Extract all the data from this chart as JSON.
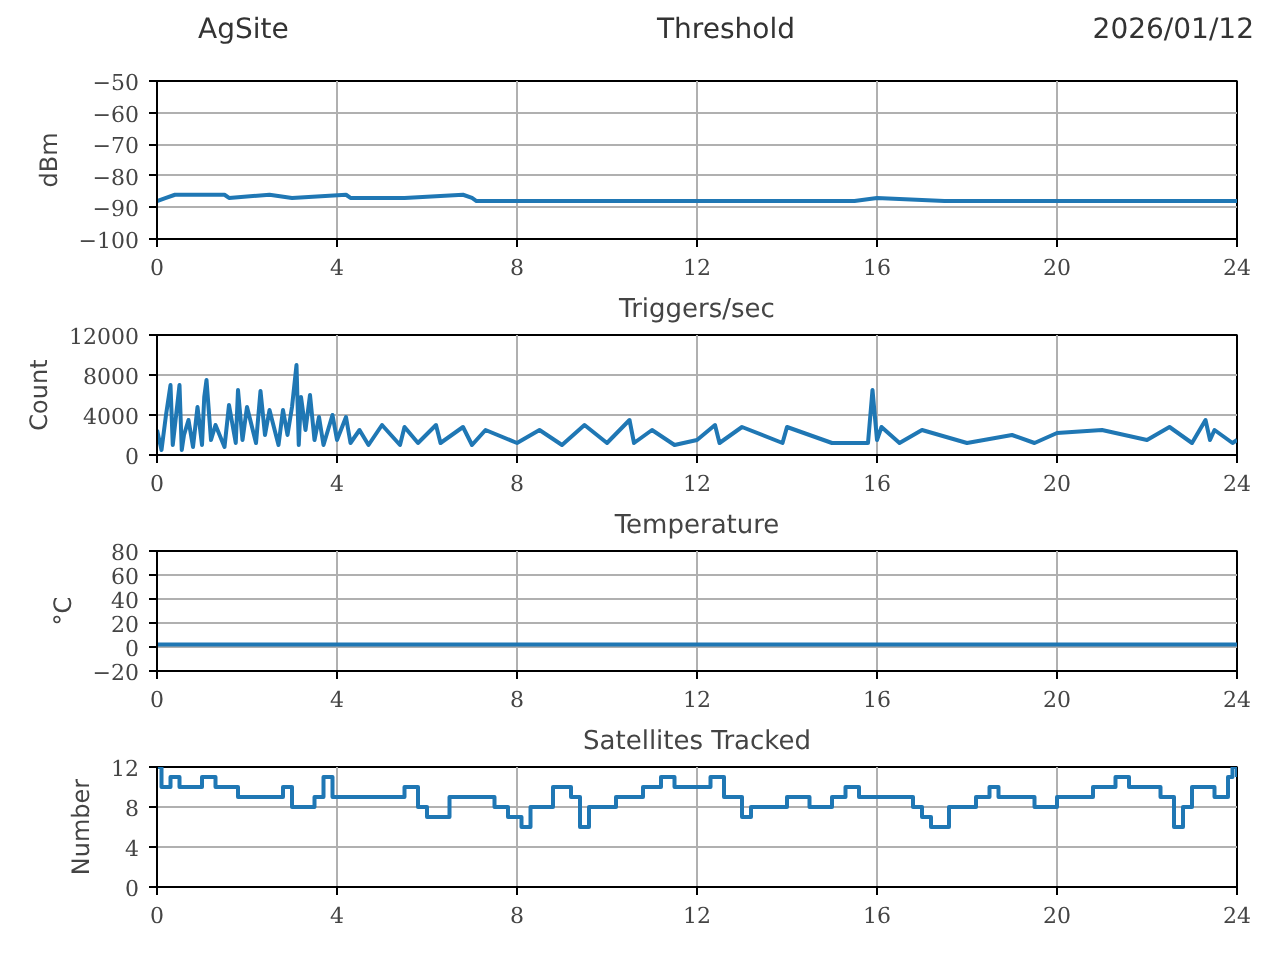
{
  "chart_data": [
    {
      "type": "line",
      "title": "Threshold",
      "ylabel": "dBm",
      "annotations": [
        "AgSite",
        "2026/01/12"
      ],
      "x": [
        0,
        0.2,
        0.4,
        1.5,
        1.6,
        2.5,
        3.0,
        4.2,
        4.3,
        5.5,
        6.8,
        7.0,
        7.1,
        12,
        15.5,
        16,
        17.5,
        20,
        24
      ],
      "series": [
        {
          "color": "#1f77b4",
          "values": [
            -88,
            -87,
            -86,
            -86,
            -87,
            -86,
            -87,
            -86,
            -87,
            -87,
            -86,
            -87,
            -88,
            -88,
            -88,
            -87,
            -88,
            -88,
            -88
          ]
        }
      ],
      "xlim": [
        0,
        24
      ],
      "xticks": [
        0,
        4,
        8,
        12,
        16,
        20,
        24
      ],
      "ylim": [
        -100,
        -50
      ],
      "yticks": [
        {
          "value": -100,
          "label": "−100"
        },
        {
          "value": -90,
          "label": "−90"
        },
        {
          "value": -80,
          "label": "−80"
        },
        {
          "value": -70,
          "label": "−70"
        },
        {
          "value": -60,
          "label": "−60"
        },
        {
          "value": -50,
          "label": "−50"
        }
      ],
      "grid": true
    },
    {
      "type": "line",
      "title": "Triggers/sec",
      "ylabel": "Count",
      "x": [
        0,
        0.1,
        0.2,
        0.3,
        0.35,
        0.4,
        0.5,
        0.55,
        0.6,
        0.7,
        0.8,
        0.9,
        1.0,
        1.05,
        1.1,
        1.2,
        1.3,
        1.5,
        1.6,
        1.75,
        1.8,
        1.9,
        2.0,
        2.2,
        2.3,
        2.4,
        2.5,
        2.7,
        2.8,
        2.9,
        3.0,
        3.1,
        3.15,
        3.2,
        3.3,
        3.4,
        3.5,
        3.6,
        3.7,
        3.9,
        4.0,
        4.2,
        4.3,
        4.5,
        4.7,
        5.0,
        5.4,
        5.5,
        5.8,
        6.2,
        6.3,
        6.8,
        7.0,
        7.3,
        8.0,
        8.5,
        9.0,
        9.5,
        10.0,
        10.5,
        10.6,
        11.0,
        11.5,
        12.0,
        12.4,
        12.5,
        13.0,
        13.9,
        14.0,
        15.0,
        15.8,
        15.9,
        16.0,
        16.1,
        16.5,
        17.0,
        18.0,
        19.0,
        19.5,
        20.0,
        21.0,
        22.0,
        22.5,
        23.0,
        23.3,
        23.4,
        23.5,
        23.9,
        24.0
      ],
      "series": [
        {
          "color": "#1f77b4",
          "values": [
            2500,
            500,
            4000,
            7000,
            1000,
            3000,
            7000,
            500,
            2000,
            3500,
            800,
            4800,
            1000,
            5800,
            7500,
            1500,
            3000,
            800,
            5000,
            1200,
            6500,
            1500,
            4800,
            1200,
            6400,
            2000,
            4500,
            1000,
            4500,
            2000,
            4800,
            9000,
            1000,
            5800,
            2500,
            6000,
            1500,
            3800,
            1000,
            4000,
            1500,
            3800,
            1200,
            2500,
            1000,
            3000,
            1000,
            2800,
            1200,
            3000,
            1200,
            2800,
            1000,
            2500,
            1200,
            2500,
            1000,
            3000,
            1200,
            3500,
            1200,
            2500,
            1000,
            1500,
            3000,
            1200,
            2800,
            1200,
            2800,
            1200,
            1200,
            6500,
            1500,
            2800,
            1200,
            2500,
            1200,
            2000,
            1200,
            2200,
            2500,
            1500,
            2800,
            1200,
            3500,
            1500,
            2500,
            1200,
            1500
          ]
        }
      ],
      "xlim": [
        0,
        24
      ],
      "xticks": [
        0,
        4,
        8,
        12,
        16,
        20,
        24
      ],
      "ylim": [
        0,
        12000
      ],
      "yticks": [
        0,
        4000,
        8000,
        12000
      ],
      "grid": true
    },
    {
      "type": "line",
      "title": "Temperature",
      "ylabel": "°C",
      "x": [
        0,
        24
      ],
      "series": [
        {
          "color": "#1f77b4",
          "values": [
            2,
            2
          ]
        }
      ],
      "xlim": [
        0,
        24
      ],
      "xticks": [
        0,
        4,
        8,
        12,
        16,
        20,
        24
      ],
      "ylim": [
        -20,
        80
      ],
      "yticks": [
        {
          "value": -20,
          "label": "−20"
        },
        0,
        20,
        40,
        60,
        80
      ],
      "grid": true
    },
    {
      "type": "step",
      "title": "Satellites Tracked",
      "ylabel": "Number",
      "x": [
        0,
        0.1,
        0.3,
        0.5,
        1.0,
        1.3,
        1.8,
        2.5,
        2.8,
        3.0,
        3.5,
        3.7,
        3.9,
        4.5,
        5.5,
        5.8,
        6.0,
        6.5,
        7.5,
        7.8,
        8.1,
        8.3,
        8.8,
        9.2,
        9.4,
        9.6,
        10.2,
        10.8,
        11.2,
        11.5,
        12.3,
        12.6,
        13.0,
        13.2,
        14.0,
        14.5,
        15.0,
        15.3,
        15.6,
        16.0,
        16.8,
        17.0,
        17.2,
        17.6,
        18.2,
        18.5,
        18.7,
        19.5,
        20.0,
        20.8,
        21.3,
        21.6,
        22.3,
        22.6,
        22.8,
        23.0,
        23.5,
        23.8,
        23.9,
        24.0
      ],
      "series": [
        {
          "color": "#1f77b4",
          "values": [
            12,
            10,
            11,
            10,
            11,
            10,
            9,
            9,
            10,
            8,
            9,
            11,
            9,
            9,
            10,
            8,
            7,
            9,
            8,
            7,
            6,
            8,
            10,
            9,
            6,
            8,
            9,
            10,
            11,
            10,
            11,
            9,
            7,
            8,
            9,
            8,
            9,
            10,
            9,
            9,
            8,
            7,
            6,
            8,
            9,
            10,
            9,
            8,
            9,
            10,
            11,
            10,
            9,
            6,
            8,
            10,
            9,
            11,
            12,
            11
          ]
        }
      ],
      "xlim": [
        0,
        24
      ],
      "xticks": [
        0,
        4,
        8,
        12,
        16,
        20,
        24
      ],
      "ylim": [
        0,
        12
      ],
      "yticks": [
        0,
        4,
        8,
        12
      ],
      "grid": true
    }
  ]
}
